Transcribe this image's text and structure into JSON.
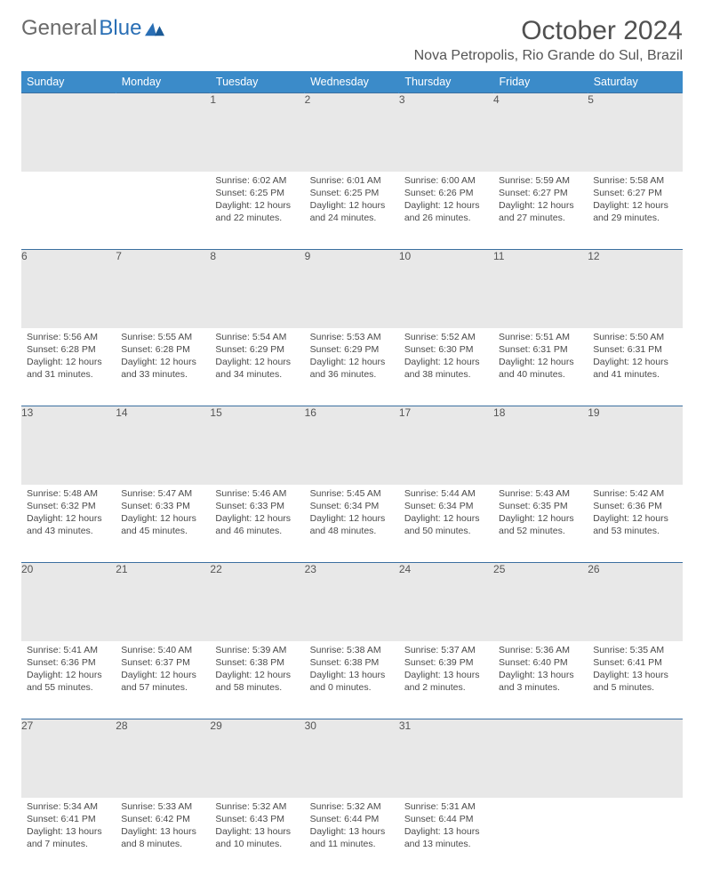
{
  "logo": {
    "part1": "General",
    "part2": "Blue"
  },
  "title": "October 2024",
  "location": "Nova Petropolis, Rio Grande do Sul, Brazil",
  "colors": {
    "header_bg": "#3b8bc9",
    "header_text": "#ffffff",
    "rule": "#3b6fa0",
    "daynum_bg": "#e8e8e8",
    "body_text": "#4a4a4a",
    "title_text": "#505050",
    "logo_gray": "#6a6a6a",
    "logo_blue": "#2a6fb5"
  },
  "day_headers": [
    "Sunday",
    "Monday",
    "Tuesday",
    "Wednesday",
    "Thursday",
    "Friday",
    "Saturday"
  ],
  "weeks": [
    {
      "nums": [
        "",
        "",
        "1",
        "2",
        "3",
        "4",
        "5"
      ],
      "cells": [
        null,
        null,
        {
          "sunrise": "Sunrise: 6:02 AM",
          "sunset": "Sunset: 6:25 PM",
          "dl1": "Daylight: 12 hours",
          "dl2": "and 22 minutes."
        },
        {
          "sunrise": "Sunrise: 6:01 AM",
          "sunset": "Sunset: 6:25 PM",
          "dl1": "Daylight: 12 hours",
          "dl2": "and 24 minutes."
        },
        {
          "sunrise": "Sunrise: 6:00 AM",
          "sunset": "Sunset: 6:26 PM",
          "dl1": "Daylight: 12 hours",
          "dl2": "and 26 minutes."
        },
        {
          "sunrise": "Sunrise: 5:59 AM",
          "sunset": "Sunset: 6:27 PM",
          "dl1": "Daylight: 12 hours",
          "dl2": "and 27 minutes."
        },
        {
          "sunrise": "Sunrise: 5:58 AM",
          "sunset": "Sunset: 6:27 PM",
          "dl1": "Daylight: 12 hours",
          "dl2": "and 29 minutes."
        }
      ]
    },
    {
      "nums": [
        "6",
        "7",
        "8",
        "9",
        "10",
        "11",
        "12"
      ],
      "cells": [
        {
          "sunrise": "Sunrise: 5:56 AM",
          "sunset": "Sunset: 6:28 PM",
          "dl1": "Daylight: 12 hours",
          "dl2": "and 31 minutes."
        },
        {
          "sunrise": "Sunrise: 5:55 AM",
          "sunset": "Sunset: 6:28 PM",
          "dl1": "Daylight: 12 hours",
          "dl2": "and 33 minutes."
        },
        {
          "sunrise": "Sunrise: 5:54 AM",
          "sunset": "Sunset: 6:29 PM",
          "dl1": "Daylight: 12 hours",
          "dl2": "and 34 minutes."
        },
        {
          "sunrise": "Sunrise: 5:53 AM",
          "sunset": "Sunset: 6:29 PM",
          "dl1": "Daylight: 12 hours",
          "dl2": "and 36 minutes."
        },
        {
          "sunrise": "Sunrise: 5:52 AM",
          "sunset": "Sunset: 6:30 PM",
          "dl1": "Daylight: 12 hours",
          "dl2": "and 38 minutes."
        },
        {
          "sunrise": "Sunrise: 5:51 AM",
          "sunset": "Sunset: 6:31 PM",
          "dl1": "Daylight: 12 hours",
          "dl2": "and 40 minutes."
        },
        {
          "sunrise": "Sunrise: 5:50 AM",
          "sunset": "Sunset: 6:31 PM",
          "dl1": "Daylight: 12 hours",
          "dl2": "and 41 minutes."
        }
      ]
    },
    {
      "nums": [
        "13",
        "14",
        "15",
        "16",
        "17",
        "18",
        "19"
      ],
      "cells": [
        {
          "sunrise": "Sunrise: 5:48 AM",
          "sunset": "Sunset: 6:32 PM",
          "dl1": "Daylight: 12 hours",
          "dl2": "and 43 minutes."
        },
        {
          "sunrise": "Sunrise: 5:47 AM",
          "sunset": "Sunset: 6:33 PM",
          "dl1": "Daylight: 12 hours",
          "dl2": "and 45 minutes."
        },
        {
          "sunrise": "Sunrise: 5:46 AM",
          "sunset": "Sunset: 6:33 PM",
          "dl1": "Daylight: 12 hours",
          "dl2": "and 46 minutes."
        },
        {
          "sunrise": "Sunrise: 5:45 AM",
          "sunset": "Sunset: 6:34 PM",
          "dl1": "Daylight: 12 hours",
          "dl2": "and 48 minutes."
        },
        {
          "sunrise": "Sunrise: 5:44 AM",
          "sunset": "Sunset: 6:34 PM",
          "dl1": "Daylight: 12 hours",
          "dl2": "and 50 minutes."
        },
        {
          "sunrise": "Sunrise: 5:43 AM",
          "sunset": "Sunset: 6:35 PM",
          "dl1": "Daylight: 12 hours",
          "dl2": "and 52 minutes."
        },
        {
          "sunrise": "Sunrise: 5:42 AM",
          "sunset": "Sunset: 6:36 PM",
          "dl1": "Daylight: 12 hours",
          "dl2": "and 53 minutes."
        }
      ]
    },
    {
      "nums": [
        "20",
        "21",
        "22",
        "23",
        "24",
        "25",
        "26"
      ],
      "cells": [
        {
          "sunrise": "Sunrise: 5:41 AM",
          "sunset": "Sunset: 6:36 PM",
          "dl1": "Daylight: 12 hours",
          "dl2": "and 55 minutes."
        },
        {
          "sunrise": "Sunrise: 5:40 AM",
          "sunset": "Sunset: 6:37 PM",
          "dl1": "Daylight: 12 hours",
          "dl2": "and 57 minutes."
        },
        {
          "sunrise": "Sunrise: 5:39 AM",
          "sunset": "Sunset: 6:38 PM",
          "dl1": "Daylight: 12 hours",
          "dl2": "and 58 minutes."
        },
        {
          "sunrise": "Sunrise: 5:38 AM",
          "sunset": "Sunset: 6:38 PM",
          "dl1": "Daylight: 13 hours",
          "dl2": "and 0 minutes."
        },
        {
          "sunrise": "Sunrise: 5:37 AM",
          "sunset": "Sunset: 6:39 PM",
          "dl1": "Daylight: 13 hours",
          "dl2": "and 2 minutes."
        },
        {
          "sunrise": "Sunrise: 5:36 AM",
          "sunset": "Sunset: 6:40 PM",
          "dl1": "Daylight: 13 hours",
          "dl2": "and 3 minutes."
        },
        {
          "sunrise": "Sunrise: 5:35 AM",
          "sunset": "Sunset: 6:41 PM",
          "dl1": "Daylight: 13 hours",
          "dl2": "and 5 minutes."
        }
      ]
    },
    {
      "nums": [
        "27",
        "28",
        "29",
        "30",
        "31",
        "",
        ""
      ],
      "cells": [
        {
          "sunrise": "Sunrise: 5:34 AM",
          "sunset": "Sunset: 6:41 PM",
          "dl1": "Daylight: 13 hours",
          "dl2": "and 7 minutes."
        },
        {
          "sunrise": "Sunrise: 5:33 AM",
          "sunset": "Sunset: 6:42 PM",
          "dl1": "Daylight: 13 hours",
          "dl2": "and 8 minutes."
        },
        {
          "sunrise": "Sunrise: 5:32 AM",
          "sunset": "Sunset: 6:43 PM",
          "dl1": "Daylight: 13 hours",
          "dl2": "and 10 minutes."
        },
        {
          "sunrise": "Sunrise: 5:32 AM",
          "sunset": "Sunset: 6:44 PM",
          "dl1": "Daylight: 13 hours",
          "dl2": "and 11 minutes."
        },
        {
          "sunrise": "Sunrise: 5:31 AM",
          "sunset": "Sunset: 6:44 PM",
          "dl1": "Daylight: 13 hours",
          "dl2": "and 13 minutes."
        },
        null,
        null
      ]
    }
  ]
}
